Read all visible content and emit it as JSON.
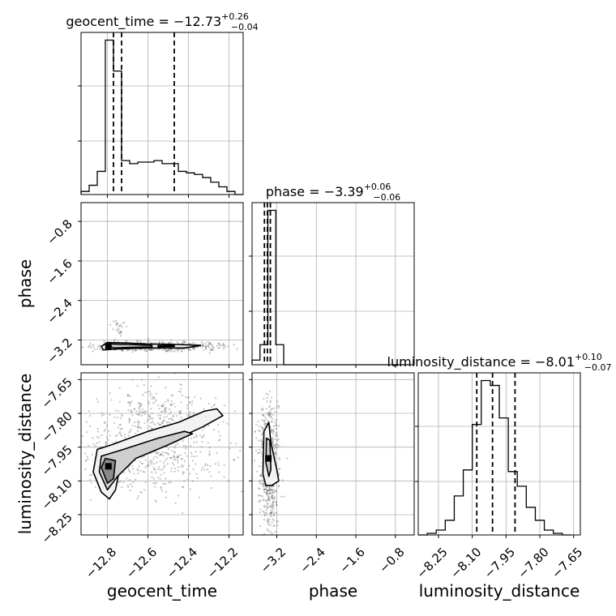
{
  "chart_data": {
    "type": "corner",
    "parameters": [
      "geocent_time",
      "phase",
      "luminosity_distance"
    ],
    "titles": [
      {
        "param": "geocent_time",
        "lhs": "geocent_time = ",
        "value": "−12.73",
        "plus": "+0.26",
        "minus": "−0.04"
      },
      {
        "param": "phase",
        "lhs": "phase = ",
        "value": "−3.39",
        "plus": "+0.06",
        "minus": "−0.06"
      },
      {
        "param": "luminosity_distance",
        "lhs": "luminosity_distance = ",
        "value": "−8.01",
        "plus": "+0.10",
        "minus": "−0.07"
      }
    ],
    "axes": {
      "geocent_time": {
        "range": [
          -12.93,
          -12.13
        ],
        "ticks": [
          -12.8,
          -12.6,
          -12.4,
          -12.2
        ],
        "tick_labels": [
          "−12.8",
          "−12.6",
          "−12.4",
          "−12.2"
        ]
      },
      "phase": {
        "range": [
          -3.7,
          -0.42
        ],
        "ticks": [
          -3.2,
          -2.4,
          -1.6,
          -0.8
        ],
        "tick_labels": [
          "−3.2",
          "−2.4",
          "−1.6",
          "−0.8"
        ]
      },
      "luminosity_distance": {
        "range": [
          -8.34,
          -7.62
        ],
        "ticks": [
          -8.25,
          -8.1,
          -7.95,
          -7.8,
          -7.65
        ],
        "tick_labels": [
          "−8.25",
          "−8.10",
          "−7.95",
          "−7.80",
          "−7.65"
        ]
      }
    },
    "histograms": [
      {
        "param": "geocent_time",
        "bin_edges": [
          -12.93,
          -12.89,
          -12.85,
          -12.81,
          -12.77,
          -12.73,
          -12.69,
          -12.65,
          -12.61,
          -12.57,
          -12.53,
          -12.49,
          -12.45,
          -12.41,
          -12.37,
          -12.33,
          -12.29,
          -12.25,
          -12.21,
          -12.17,
          -12.13
        ],
        "counts": [
          0.02,
          0.06,
          0.15,
          1.0,
          0.8,
          0.22,
          0.2,
          0.21,
          0.21,
          0.22,
          0.2,
          0.2,
          0.15,
          0.14,
          0.13,
          0.11,
          0.08,
          0.05,
          0.02,
          0.0
        ],
        "quantiles": [
          -12.77,
          -12.73,
          -12.47
        ]
      },
      {
        "param": "phase",
        "bin_edges": [
          -3.7,
          -3.54,
          -3.38,
          -3.22,
          -3.06,
          -2.9,
          -2.74,
          -2.58,
          -2.42,
          -2.26,
          -2.1,
          -1.94,
          -1.78,
          -1.62,
          -1.46,
          -1.3,
          -1.14,
          -0.98,
          -0.82,
          -0.66,
          -0.5
        ],
        "counts": [
          0.03,
          0.13,
          1.0,
          0.13,
          0,
          0,
          0,
          0,
          0,
          0,
          0,
          0,
          0,
          0,
          0,
          0,
          0,
          0,
          0,
          0
        ],
        "quantiles": [
          -3.45,
          -3.39,
          -3.33
        ]
      },
      {
        "param": "luminosity_distance",
        "bin_edges": [
          -8.34,
          -8.3,
          -8.26,
          -8.22,
          -8.18,
          -8.14,
          -8.1,
          -8.06,
          -8.02,
          -7.98,
          -7.94,
          -7.9,
          -7.86,
          -7.82,
          -7.78,
          -7.74,
          -7.7,
          -7.66
        ],
        "counts": [
          0.0,
          0.01,
          0.03,
          0.09,
          0.24,
          0.4,
          0.68,
          0.95,
          0.92,
          0.72,
          0.39,
          0.3,
          0.17,
          0.09,
          0.03,
          0.01,
          0.0
        ],
        "quantiles": [
          -8.08,
          -8.01,
          -7.91
        ]
      }
    ],
    "scatter_panels": [
      {
        "x": "geocent_time",
        "y": "phase",
        "contours": [
          [
            [
              -12.83,
              -3.33
            ],
            [
              -12.8,
              -3.25
            ],
            [
              -12.7,
              -3.26
            ],
            [
              -12.6,
              -3.28
            ],
            [
              -12.45,
              -3.29
            ],
            [
              -12.34,
              -3.31
            ],
            [
              -12.42,
              -3.36
            ],
            [
              -12.6,
              -3.36
            ],
            [
              -12.74,
              -3.38
            ],
            [
              -12.82,
              -3.4
            ]
          ],
          [
            [
              -12.8,
              -3.31
            ],
            [
              -12.78,
              -3.28
            ],
            [
              -12.7,
              -3.29
            ],
            [
              -12.58,
              -3.31
            ],
            [
              -12.58,
              -3.34
            ],
            [
              -12.7,
              -3.35
            ],
            [
              -12.77,
              -3.36
            ]
          ],
          [
            [
              -12.55,
              -3.315
            ],
            [
              -12.47,
              -3.31
            ],
            [
              -12.47,
              -3.33
            ],
            [
              -12.55,
              -3.335
            ]
          ]
        ],
        "cloud": [
          {
            "cx": -12.55,
            "cy": -3.33,
            "sx": 0.18,
            "sy": 0.05,
            "n": 500
          },
          {
            "cx": -12.74,
            "cy": -2.95,
            "sx": 0.02,
            "sy": 0.1,
            "n": 25
          }
        ],
        "peak": [
          -12.795,
          -3.32
        ]
      },
      {
        "x": "geocent_time",
        "y": "luminosity_distance",
        "contours": [
          [
            [
              -12.87,
              -8.06
            ],
            [
              -12.85,
              -7.96
            ],
            [
              -12.78,
              -7.94
            ],
            [
              -12.6,
              -7.88
            ],
            [
              -12.45,
              -7.84
            ],
            [
              -12.32,
              -7.79
            ],
            [
              -12.26,
              -7.78
            ],
            [
              -12.23,
              -7.81
            ],
            [
              -12.33,
              -7.86
            ],
            [
              -12.5,
              -7.93
            ],
            [
              -12.65,
              -7.99
            ],
            [
              -12.74,
              -8.05
            ],
            [
              -12.76,
              -8.14
            ],
            [
              -12.79,
              -8.18
            ],
            [
              -12.83,
              -8.15
            ]
          ],
          [
            [
              -12.84,
              -8.06
            ],
            [
              -12.83,
              -7.99
            ],
            [
              -12.72,
              -7.96
            ],
            [
              -12.55,
              -7.91
            ],
            [
              -12.42,
              -7.88
            ],
            [
              -12.38,
              -7.89
            ],
            [
              -12.5,
              -7.94
            ],
            [
              -12.66,
              -8.0
            ],
            [
              -12.75,
              -8.08
            ],
            [
              -12.8,
              -8.14
            ]
          ],
          [
            [
              -12.83,
              -8.04
            ],
            [
              -12.81,
              -8.0
            ],
            [
              -12.76,
              -8.01
            ],
            [
              -12.77,
              -8.09
            ],
            [
              -12.8,
              -8.11
            ]
          ]
        ],
        "cloud": [
          {
            "cx": -12.6,
            "cy": -7.96,
            "sx": 0.2,
            "sy": 0.1,
            "n": 600
          },
          {
            "cx": -12.55,
            "cy": -7.78,
            "sx": 0.12,
            "sy": 0.05,
            "n": 150
          }
        ],
        "peak": [
          -12.795,
          -8.035
        ]
      },
      {
        "x": "phase",
        "y": "luminosity_distance",
        "contours": [
          [
            [
              -3.48,
              -8.07
            ],
            [
              -3.46,
              -7.88
            ],
            [
              -3.36,
              -7.84
            ],
            [
              -3.32,
              -7.93
            ],
            [
              -3.2,
              -8.05
            ],
            [
              -3.16,
              -8.1
            ],
            [
              -3.3,
              -8.12
            ],
            [
              -3.42,
              -8.12
            ]
          ],
          [
            [
              -3.42,
              -8.02
            ],
            [
              -3.41,
              -7.91
            ],
            [
              -3.34,
              -7.92
            ],
            [
              -3.32,
              -8.05
            ],
            [
              -3.36,
              -8.08
            ]
          ]
        ],
        "cloud": [
          {
            "cx": -3.35,
            "cy": -8.04,
            "sx": 0.1,
            "sy": 0.14,
            "n": 600
          }
        ],
        "peak": [
          -3.37,
          -8.0
        ]
      }
    ],
    "grid": true,
    "colors": {
      "line": "#000000",
      "grid": "#b0b0b0",
      "points": "#555555"
    }
  }
}
